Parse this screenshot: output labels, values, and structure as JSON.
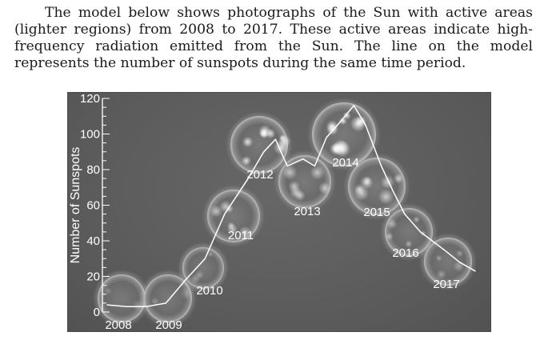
{
  "passage": {
    "text": "The model below shows photographs of the Sun with active areas (lighter regions) from 2008 to 2017. These active areas indicate high-frequency radiation emitted from the Sun. The line on the model represents the number of sunspots during the same time period."
  },
  "chart_data": {
    "type": "line",
    "title": "",
    "xlabel": "",
    "ylabel": "Number of Sunspots",
    "ylim": [
      0,
      120
    ],
    "yticks": [
      0,
      20,
      40,
      60,
      80,
      100,
      120
    ],
    "sun_images": [
      {
        "year": "2008",
        "activity": 0.05
      },
      {
        "year": "2009",
        "activity": 0.05
      },
      {
        "year": "2010",
        "activity": 0.15
      },
      {
        "year": "2011",
        "activity": 0.55
      },
      {
        "year": "2012",
        "activity": 0.85
      },
      {
        "year": "2013",
        "activity": 0.55
      },
      {
        "year": "2014",
        "activity": 0.95
      },
      {
        "year": "2015",
        "activity": 0.6
      },
      {
        "year": "2016",
        "activity": 0.35
      },
      {
        "year": "2017",
        "activity": 0.2
      }
    ],
    "series": [
      {
        "x": [
          2008.0,
          2008.5,
          2009.0,
          2009.5,
          2010.0,
          2010.5,
          2011.0,
          2011.3,
          2011.6,
          2012.0,
          2012.3,
          2012.6,
          2013.0,
          2013.3,
          2013.6,
          2014.0,
          2014.3,
          2014.6,
          2015.0,
          2015.3,
          2015.6,
          2016.0,
          2016.3,
          2016.6,
          2017.0,
          2017.4
        ],
        "y": [
          4,
          3,
          3,
          5,
          18,
          30,
          55,
          65,
          75,
          90,
          97,
          82,
          86,
          82,
          98,
          108,
          116,
          105,
          82,
          68,
          55,
          45,
          40,
          35,
          28,
          23
        ]
      }
    ]
  }
}
